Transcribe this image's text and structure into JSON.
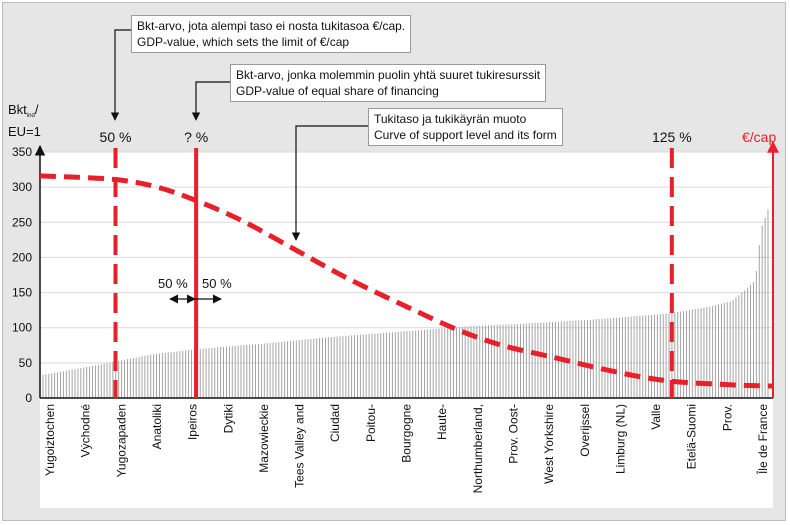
{
  "chart_data": {
    "type": "bar",
    "y_axis_title": "Bkt",
    "y_axis_title_sub": "ind",
    "y_axis_title_slash": "/",
    "y_axis_title_line2": "EU=1",
    "right_axis_label": "€/cap",
    "ylim": [
      0,
      350
    ],
    "yticks": [
      0,
      50,
      100,
      150,
      200,
      250,
      300,
      350
    ],
    "grid": true,
    "region_labels": [
      "Yugoiztochen",
      "Východné",
      "Yugozapaden",
      "Anatoliki",
      "Ipeiros",
      "Dytiki",
      "Mazowieckie",
      "Tees Valley and",
      "Ciudad",
      "Poitou-",
      "Bourgogne",
      "Haute-",
      "Northumberland,",
      "Prov. Oost-",
      "West Yorkshire",
      "Overijssel",
      "Limburg (NL)",
      "Valle",
      "Etelä-Suomi",
      "Prov.",
      "Île de France"
    ],
    "bar_series": {
      "name": "GDP per capita index (EU=1)",
      "count": 250,
      "values_approx": {
        "positions": [
          0,
          0.05,
          0.1,
          0.15,
          0.2,
          0.25,
          0.3,
          0.35,
          0.4,
          0.45,
          0.5,
          0.55,
          0.6,
          0.65,
          0.7,
          0.75,
          0.8,
          0.85,
          0.88,
          0.92,
          0.95,
          0.97,
          0.98,
          0.985,
          0.99,
          1.0
        ],
        "values": [
          33,
          42,
          52,
          62,
          68,
          73,
          77,
          82,
          87,
          91,
          95,
          99,
          103,
          105,
          108,
          111,
          115,
          119,
          123,
          130,
          138,
          155,
          165,
          185,
          240,
          268
        ]
      }
    },
    "support_curve": {
      "name": "Tukitaso ja tukikäyrän muoto / Curve of support level and its form",
      "x": [
        0,
        0.1,
        0.16,
        0.22,
        0.28,
        0.35,
        0.42,
        0.5,
        0.57,
        0.63,
        0.7,
        0.76,
        0.82,
        0.87,
        0.92,
        0.96,
        1.0
      ],
      "y": [
        316,
        311,
        300,
        278,
        250,
        210,
        170,
        130,
        97,
        75,
        58,
        43,
        30,
        23,
        20,
        18,
        17
      ]
    },
    "markers": [
      {
        "label": "50 %",
        "x": 0.103,
        "style": "dashed"
      },
      {
        "label": "? %",
        "x": 0.213,
        "style": "solid"
      },
      {
        "label": "125 %",
        "x": 0.862,
        "style": "dashed"
      }
    ],
    "financing_split": {
      "left": "50 %",
      "right": "50 %"
    },
    "annotations": [
      {
        "lines": [
          "Bkt-arvo, jota alempi taso ei nosta tukitasoa €/cap.",
          "GDP-value, which sets the limit of €/cap"
        ]
      },
      {
        "lines": [
          "Bkt-arvo, jonka molemmin puolin yhtä suuret tukiresurssit",
          "GDP-value of equal share of financing"
        ]
      },
      {
        "lines": [
          "Tukitaso ja tukikäyrän muoto",
          "Curve of support level and its form"
        ]
      }
    ],
    "colors": {
      "accent": "#e8202a",
      "bars": "#9a9a9a",
      "background": "#e6e6e6",
      "plot_background": "#ffffff"
    }
  }
}
